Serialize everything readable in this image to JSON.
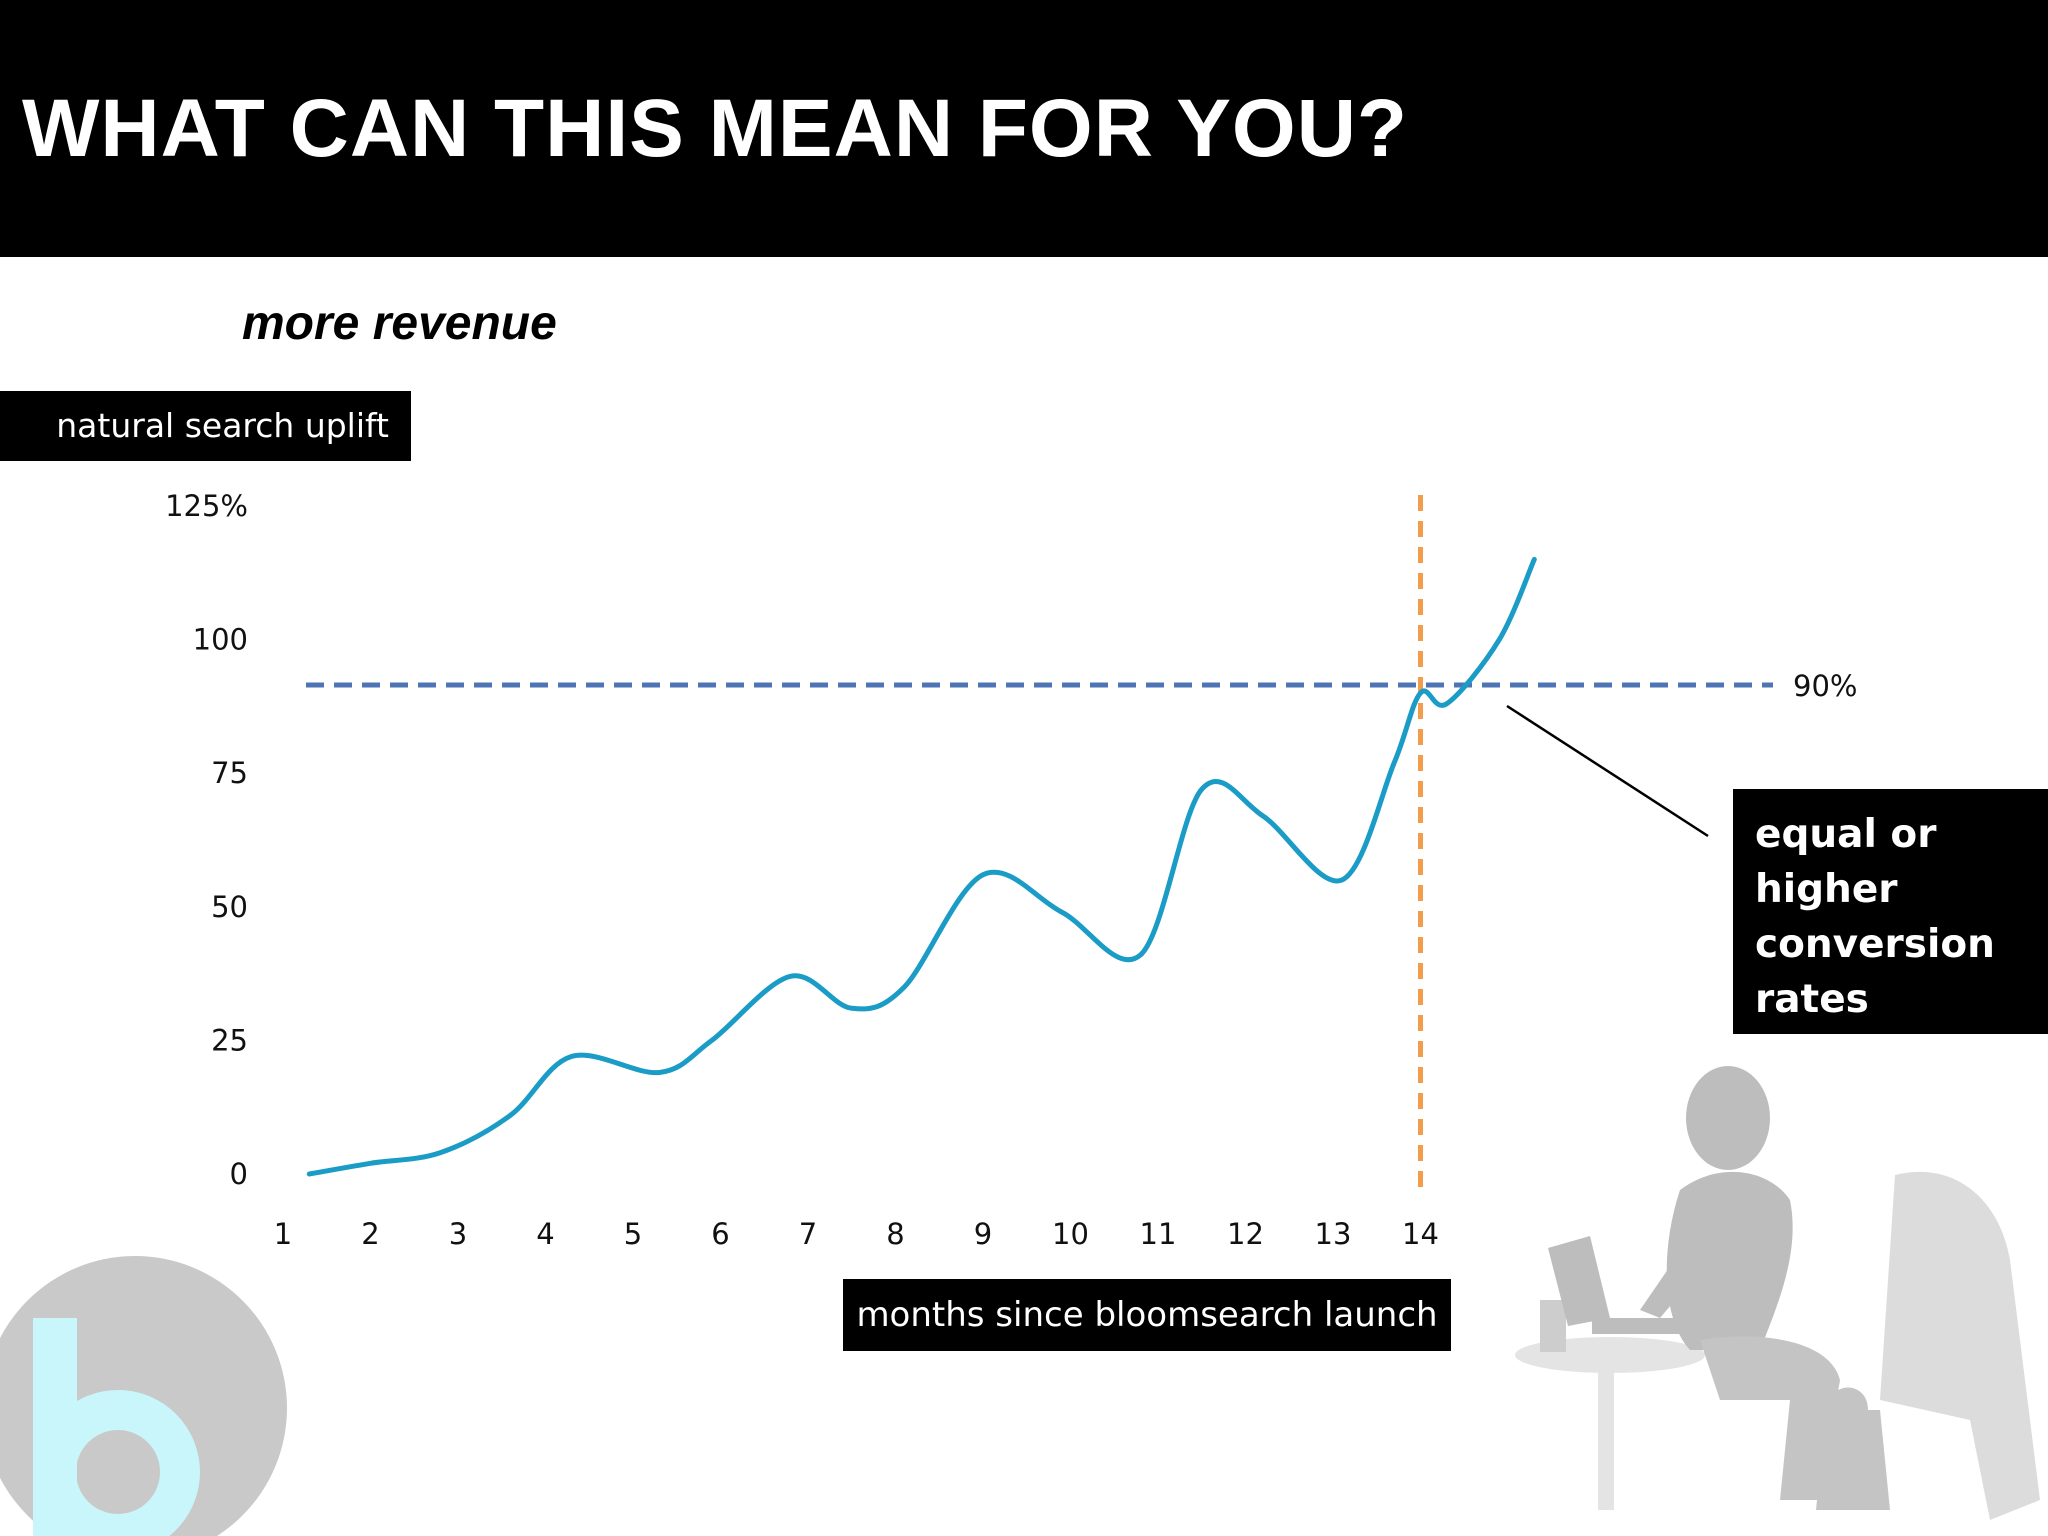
{
  "slide": {
    "title": "WHAT CAN THIS MEAN FOR YOU?",
    "subtitle": "more revenue",
    "callout_lines": [
      "equal or",
      "higher",
      "conversion",
      "rates"
    ]
  },
  "colors": {
    "line": "#1a9cc6",
    "threshold": "#4f74b5",
    "marker": "#f29d4b",
    "header": "#000000"
  },
  "chart_data": {
    "type": "line",
    "title": "",
    "xlabel": "months since bloomsearch launch",
    "ylabel": "natural search uplift",
    "categories": [
      "1",
      "2",
      "3",
      "4",
      "5",
      "6",
      "7",
      "8",
      "9",
      "10",
      "11",
      "12",
      "13",
      "14"
    ],
    "y_ticks": [
      "0",
      "25",
      "50",
      "75",
      "100",
      "125%"
    ],
    "ylim": [
      0,
      125
    ],
    "xlim": [
      1,
      15
    ],
    "grid": false,
    "series": [
      {
        "x": [
          1.3,
          2.0,
          2.8,
          3.6,
          4.3,
          5.3,
          5.9,
          6.8,
          7.5,
          8.1,
          9.0,
          9.9,
          10.8,
          11.5,
          12.2,
          13.1,
          13.7,
          14.0,
          14.3,
          14.9,
          15.3
        ],
        "values": [
          0,
          2,
          4,
          11,
          22,
          19,
          25,
          37,
          31,
          35,
          56,
          49,
          41,
          72,
          67,
          55,
          77,
          90,
          88,
          100,
          115
        ]
      }
    ],
    "annotations": [
      {
        "type": "hline",
        "y": 91.5,
        "label": "90%"
      },
      {
        "type": "vline",
        "x": 14
      }
    ]
  }
}
